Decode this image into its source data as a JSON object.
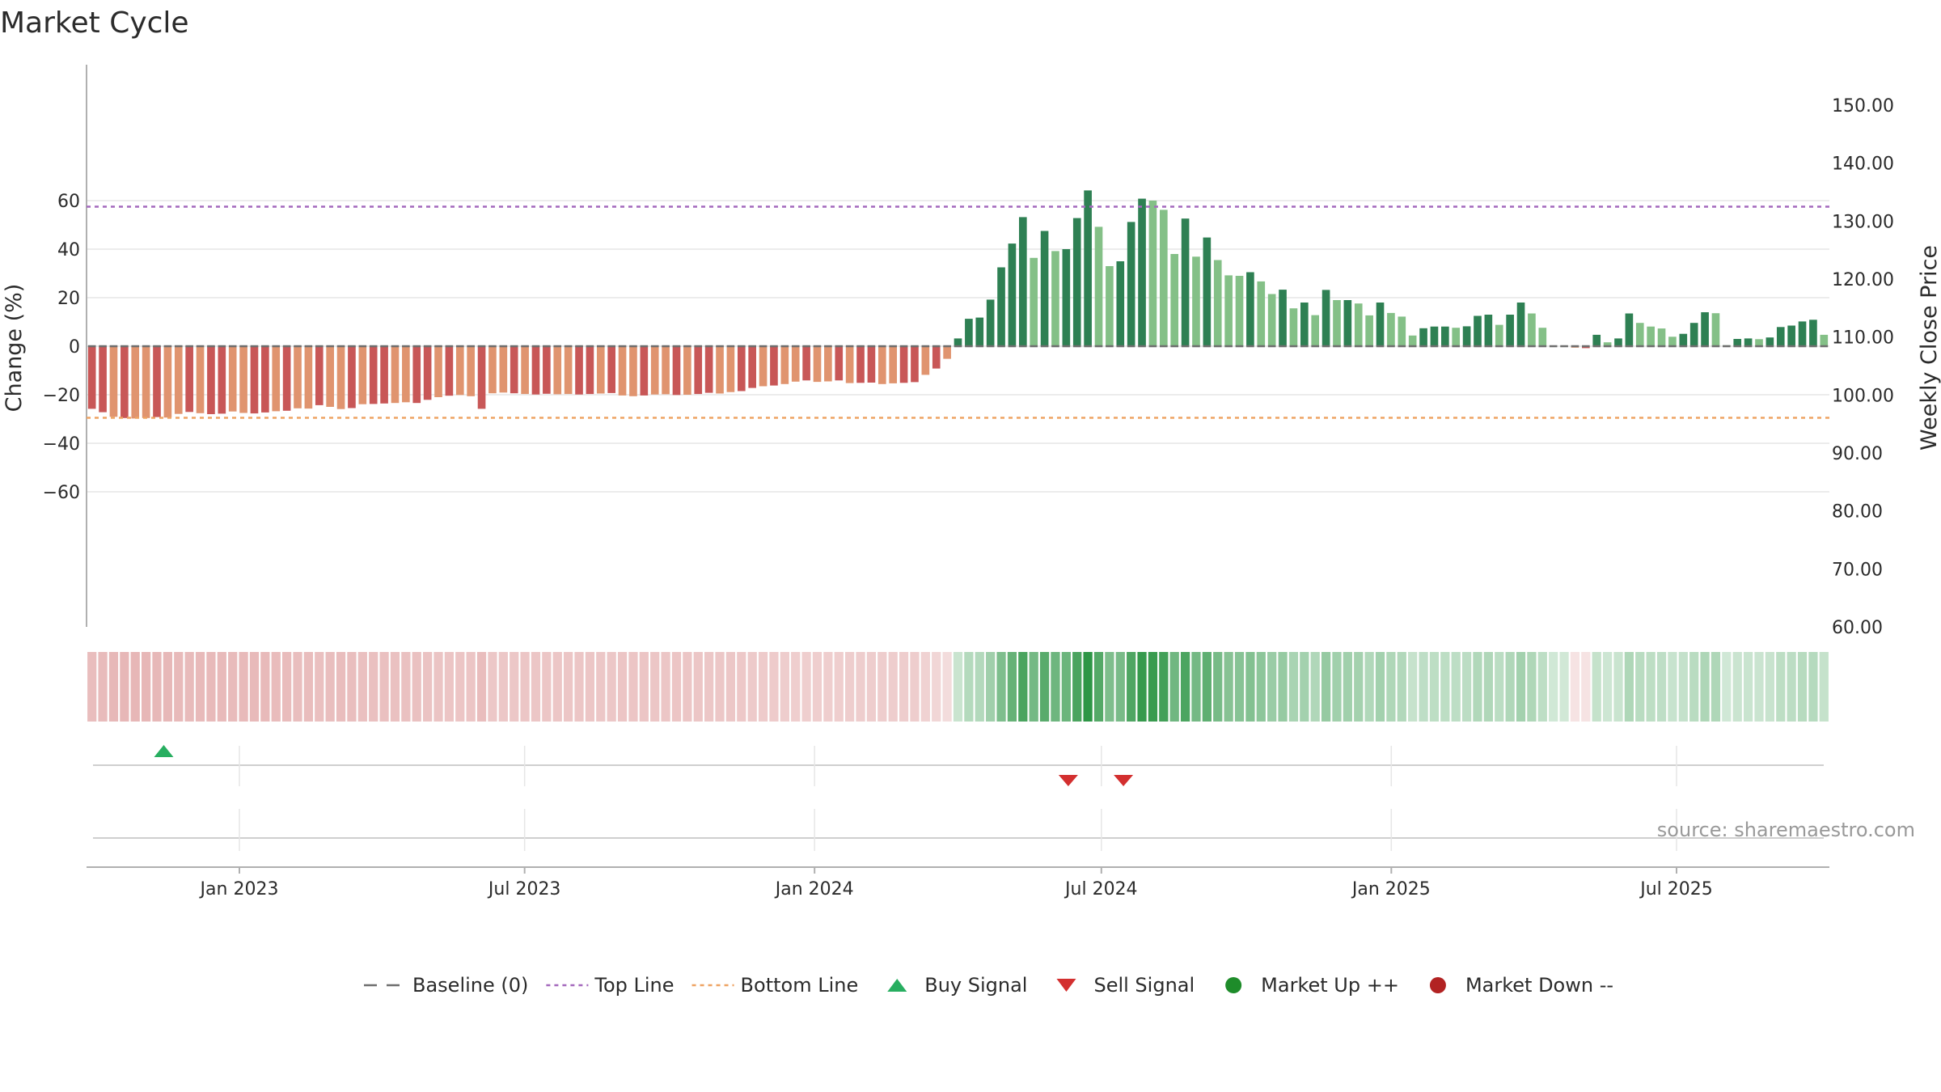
{
  "chart_data": {
    "type": "bar",
    "title": "Market Cycle",
    "ylabel": "Change (%)",
    "y2label": "Weekly Close Price",
    "ylim": [
      -70,
      70
    ],
    "y2lim": [
      60,
      152
    ],
    "yticks": [
      -60,
      -40,
      -20,
      0,
      20,
      40,
      60
    ],
    "yticks_labels": [
      "−60",
      "−40",
      "−20",
      "0",
      "20",
      "40",
      "60"
    ],
    "y2ticks": [
      "60.00",
      "70.00",
      "80.00",
      "90.00",
      "100.00",
      "110.00",
      "120.00",
      "130.00",
      "140.00",
      "150.00"
    ],
    "x_start": "2022-09-26",
    "x_end": "2025-10-06",
    "x_tick_dates": [
      "2023-01-01",
      "2023-07-01",
      "2024-01-01",
      "2024-07-01",
      "2025-01-01",
      "2025-07-01"
    ],
    "x_tick_labels": [
      "Jan 2023",
      "Jul 2023",
      "Jan 2024",
      "Jul 2024",
      "Jan 2025",
      "Jul 2025"
    ],
    "top_line": 57.5,
    "bottom_line": -29.5,
    "baseline": 0,
    "grid": true,
    "series": [
      {
        "name": "Change (%)",
        "values": [
          -25.8,
          -27.2,
          -29.1,
          -29.6,
          -29.8,
          -29.6,
          -29.2,
          -29.4,
          -27.9,
          -27.1,
          -27.6,
          -28.0,
          -27.8,
          -26.9,
          -27.5,
          -27.7,
          -27.3,
          -26.8,
          -26.6,
          -25.6,
          -25.7,
          -24.3,
          -25.0,
          -25.9,
          -25.5,
          -23.9,
          -23.8,
          -23.6,
          -23.4,
          -23.1,
          -23.4,
          -22.1,
          -21.0,
          -20.4,
          -20.1,
          -20.6,
          -25.8,
          -19.4,
          -19.1,
          -19.4,
          -19.7,
          -19.9,
          -19.6,
          -19.8,
          -19.7,
          -19.9,
          -19.7,
          -19.5,
          -19.3,
          -20.3,
          -20.6,
          -20.3,
          -19.9,
          -19.8,
          -20.1,
          -20.0,
          -19.7,
          -19.2,
          -19.5,
          -18.9,
          -18.5,
          -17.2,
          -16.5,
          -16.2,
          -15.6,
          -14.6,
          -14.1,
          -14.7,
          -14.5,
          -14.1,
          -15.2,
          -15.1,
          -15.0,
          -15.6,
          -15.3,
          -15.1,
          -14.8,
          -11.8,
          -9.2,
          -5.2,
          3.2,
          11.3,
          11.8,
          19.2,
          32.5,
          42.3,
          53.2,
          36.4,
          47.5,
          39.2,
          40.0,
          52.8,
          64.2,
          49.2,
          33.0,
          35.0,
          51.2,
          60.8,
          60.0,
          56.2,
          38.0,
          52.6,
          36.9,
          44.8,
          35.5,
          29.2,
          29.0,
          30.5,
          26.7,
          21.5,
          23.3,
          15.6,
          18.0,
          12.8,
          23.2,
          19.0,
          19.0,
          17.6,
          12.7,
          18.0,
          13.7,
          12.2,
          4.4,
          7.4,
          8.1,
          8.1,
          7.6,
          8.2,
          12.5,
          13.0,
          8.8,
          13.0,
          18.0,
          13.5,
          7.6,
          0.2,
          0.0,
          -0.6,
          -0.8,
          4.7,
          1.6,
          3.2,
          13.5,
          9.6,
          8.1,
          7.3,
          3.9,
          5.1,
          9.6,
          14.0,
          13.6,
          0.4,
          3.0,
          3.2,
          2.9,
          3.6,
          7.9,
          8.5,
          10.2,
          10.9,
          4.7
        ]
      }
    ],
    "buy_signal_dates": [
      "2022-11-14"
    ],
    "sell_signal_dates": [
      "2024-06-10",
      "2024-07-15"
    ],
    "legend": [
      "Baseline (0)",
      "Top Line",
      "Bottom Line",
      "Buy Signal",
      "Sell Signal",
      "Market Up ++",
      "Market Down --"
    ],
    "legend_position": "bottom-center",
    "source_label": "source: sharemaestro.com",
    "colors": {
      "bar_strong_red": "#c85757",
      "bar_light_red": "#e0946f",
      "bar_strong_green": "#2e8053",
      "bar_light_green": "#84c087",
      "top_line": "#a469bd",
      "bottom_line": "#eea362",
      "baseline": "#6e6e6e",
      "buy": "#27ae60",
      "sell": "#d32f2f",
      "market_up": "#1e8c2a",
      "market_down": "#b22222",
      "grid": "#e6e6e6",
      "axis": "#b0b0b0"
    }
  }
}
